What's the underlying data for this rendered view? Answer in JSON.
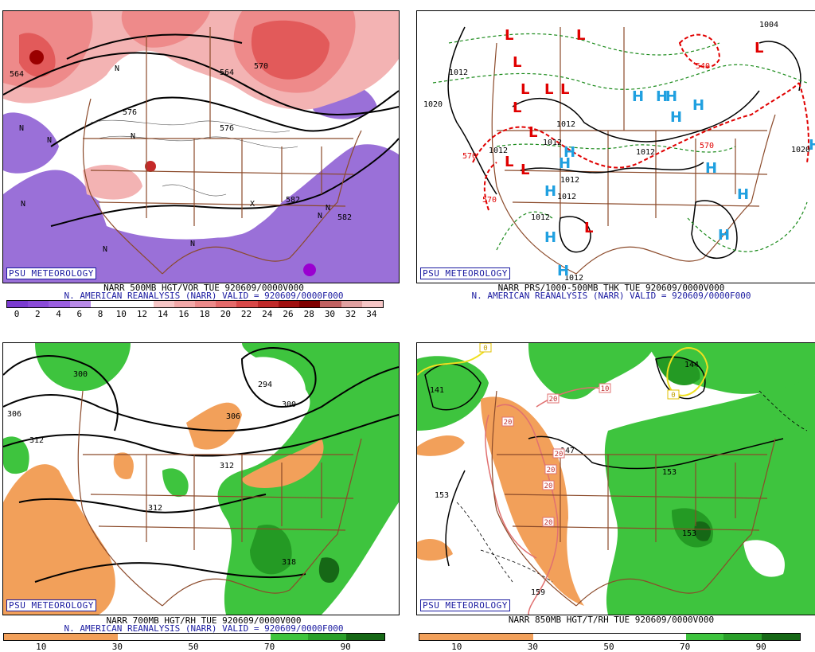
{
  "colors": {
    "border_brown": "#8b4a2a",
    "positive_vort": [
      "#f3b3b3",
      "#ee8a8a",
      "#e25a5a",
      "#c52a2a",
      "#9a0000"
    ],
    "negative_vort": "#9a70d8",
    "rh_moist": [
      "#3ec43e",
      "#249a24",
      "#166816"
    ],
    "rh_dry": "#f2a05a",
    "high_symbol": "#20a0e0",
    "low_symbol": "#e00000",
    "thickness_line": "#e00000",
    "badge_text": "#1a1aa0"
  },
  "panels": [
    {
      "id": "tl",
      "badge": "PSU METEOROLOGY",
      "caption1": "NARR 500MB HGT/VOR TUE 920609/0000V000",
      "caption2": "N. AMERICAN REANALYSIS (NARR) VALID = 920609/0000F000",
      "colorbar_labels": [
        "0",
        "2",
        "4",
        "6",
        "8",
        "10",
        "12",
        "14",
        "16",
        "18",
        "20",
        "22",
        "24",
        "26",
        "28",
        "30",
        "32",
        "34"
      ],
      "colorbar_colors": [
        "#7a3ad0",
        "#8a4ad8",
        "#9a5ee0",
        "#b88ae8",
        "#ffffff",
        "#ffffff",
        "#ffffff",
        "#f6c6c6",
        "#f2a8a8",
        "#ec8a8a",
        "#e46a6a",
        "#d84848",
        "#c02a2a",
        "#a01010",
        "#800000",
        "#c06060",
        "#e0a0a0",
        "#f6c6c6"
      ],
      "contour_labels": [
        "564",
        "576",
        "582",
        "582",
        "564",
        "570",
        "576"
      ],
      "vort_labels": [
        "N",
        "N",
        "N",
        "N",
        "N",
        "N",
        "X",
        "N",
        "N",
        "N",
        "N"
      ]
    },
    {
      "id": "tr",
      "badge": "PSU METEOROLOGY",
      "caption1": "NARR PRS/1000-500MB THK TUE 920609/0000V000",
      "caption2": "N. AMERICAN REANALYSIS (NARR) VALID = 920609/0000F000",
      "pressure_labels": [
        "1012",
        "1020",
        "1012",
        "1012",
        "1012",
        "1012",
        "1012",
        "1012",
        "1012",
        "1012",
        "1020",
        "1004"
      ],
      "thickness_labels": [
        "570",
        "570",
        "540",
        "570"
      ],
      "high_symbol": "H",
      "low_symbol": "L"
    },
    {
      "id": "bl",
      "badge": "PSU METEOROLOGY",
      "caption1": "NARR 700MB HGT/RH TUE 920609/0000V000",
      "caption2": "N. AMERICAN REANALYSIS (NARR) VALID = 920609/0000F000",
      "colorbar_labels": [
        "10",
        "30",
        "50",
        "70",
        "90"
      ],
      "contour_labels": [
        "300",
        "306",
        "312",
        "294",
        "300",
        "306",
        "312",
        "312",
        "318"
      ]
    },
    {
      "id": "br",
      "badge": "PSU METEOROLOGY",
      "caption1": "NARR 850MB HGT/T/RH TUE 920609/0000V000",
      "colorbar_labels": [
        "10",
        "30",
        "50",
        "70",
        "90"
      ],
      "contour_labels": [
        "141",
        "144",
        "147",
        "153",
        "153",
        "153",
        "159"
      ],
      "temp_labels": [
        "20",
        "20",
        "20",
        "20",
        "20",
        "20",
        "10",
        "0",
        "0"
      ]
    }
  ]
}
